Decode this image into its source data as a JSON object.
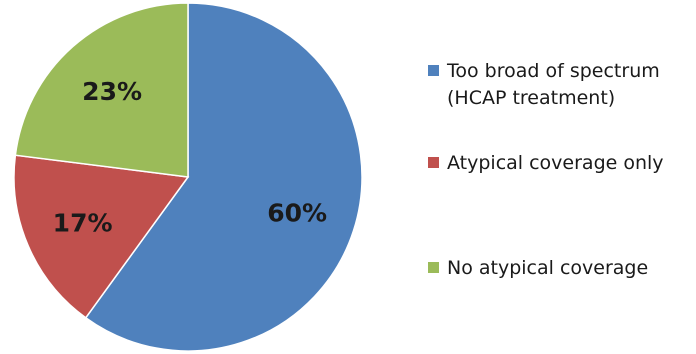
{
  "chart_data": {
    "type": "pie",
    "categories": [
      "Too broad of spectrum (HCAP treatment)",
      "Atypical coverage only",
      "No atypical coverage"
    ],
    "values": [
      60,
      17,
      23
    ],
    "data_labels": [
      "60%",
      "17%",
      "23%"
    ],
    "colors": [
      "#4f81bd",
      "#c0504d",
      "#9bbb59"
    ],
    "legend": {
      "placement": "right",
      "entries": [
        {
          "lines": [
            "Too broad of spectrum",
            "(HCAP treatment)"
          ],
          "color": "#4f81bd"
        },
        {
          "lines": [
            "Atypical coverage only"
          ],
          "color": "#c0504d"
        },
        {
          "lines": [
            "No atypical coverage"
          ],
          "color": "#9bbb59"
        }
      ]
    },
    "start": "12 o'clock",
    "direction": "clockwise",
    "title": ""
  }
}
